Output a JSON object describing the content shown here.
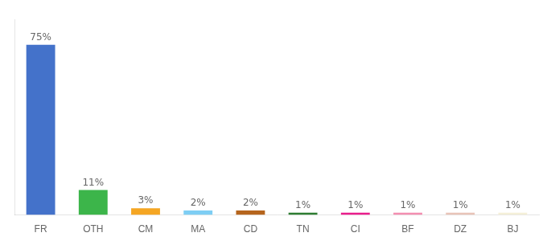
{
  "chart_data": {
    "type": "bar",
    "categories": [
      "FR",
      "OTH",
      "CM",
      "MA",
      "CD",
      "TN",
      "CI",
      "BF",
      "DZ",
      "BJ"
    ],
    "values": [
      75,
      11,
      3,
      2,
      2,
      1,
      1,
      1,
      1,
      1
    ],
    "value_labels": [
      "75%",
      "11%",
      "3%",
      "2%",
      "2%",
      "1%",
      "1%",
      "1%",
      "1%",
      "1%"
    ],
    "colors": [
      "#4472ca",
      "#3cb54a",
      "#f5a623",
      "#7ecef4",
      "#b5651d",
      "#2e7d32",
      "#e91e8c",
      "#f48fb1",
      "#e8c4b8",
      "#f5f0d8"
    ],
    "ylim": [
      0,
      86.25
    ],
    "data_labels": true,
    "tick_labels": "x",
    "grid": false
  }
}
